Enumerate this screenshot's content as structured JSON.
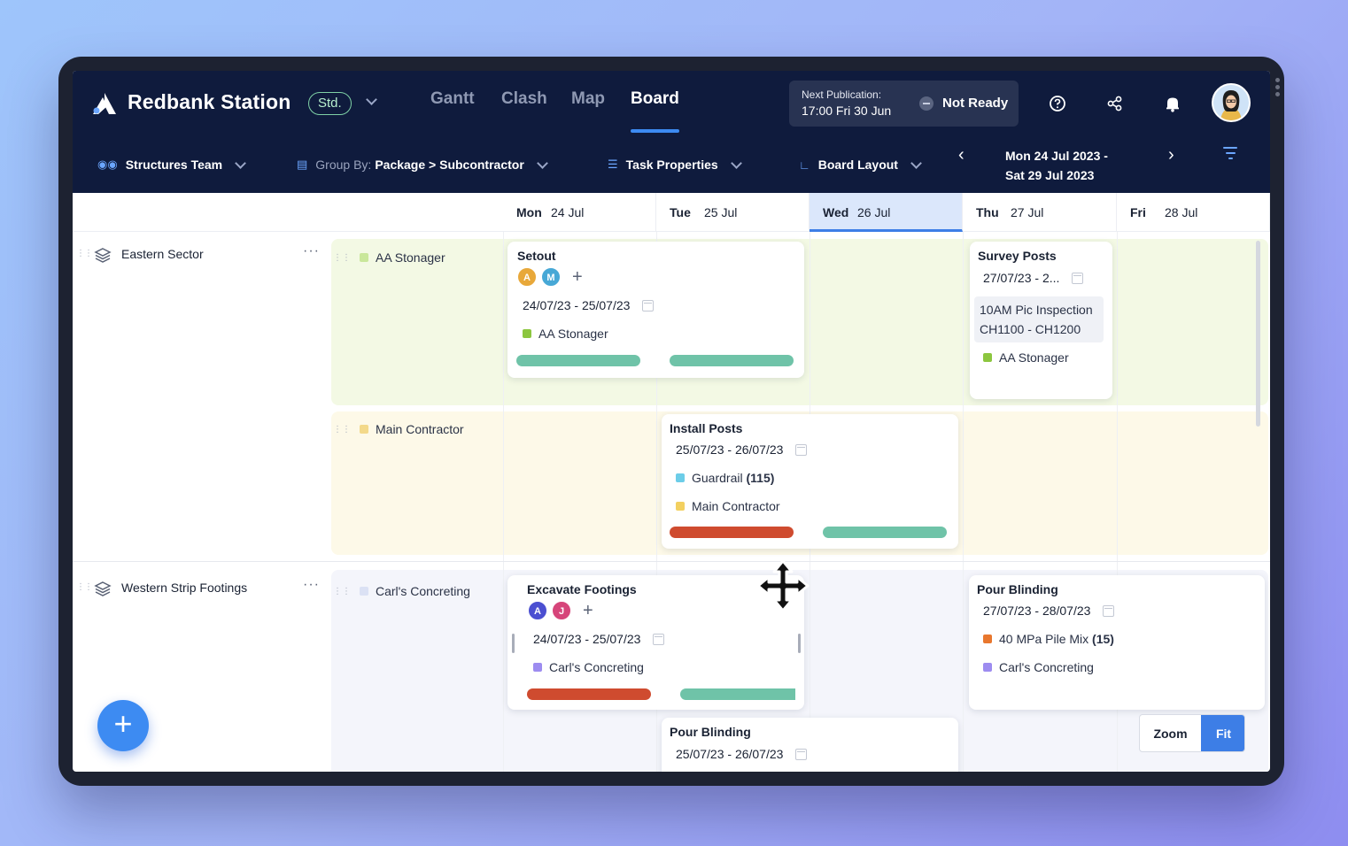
{
  "app": {
    "title": "Redbank Station",
    "badge": "Std.",
    "nav": [
      "Gantt",
      "Clash",
      "Map",
      "Board"
    ],
    "active_nav": "Board"
  },
  "publication": {
    "label": "Next Publication:",
    "time": "17:00 Fri 30 Jun",
    "status": "Not Ready"
  },
  "toolbar": {
    "team": "Structures Team",
    "group_prefix": "Group By:",
    "group_value": "Package > Subcontractor",
    "task_properties": "Task Properties",
    "board_layout": "Board Layout",
    "date_range_line1": "Mon 24 Jul 2023 -",
    "date_range_line2": "Sat 29 Jul 2023"
  },
  "days": [
    {
      "name": "Mon",
      "date": "24 Jul",
      "today": false
    },
    {
      "name": "Tue",
      "date": "25 Jul",
      "today": false
    },
    {
      "name": "Wed",
      "date": "26 Jul",
      "today": true
    },
    {
      "name": "Thu",
      "date": "27 Jul",
      "today": false
    },
    {
      "name": "Fri",
      "date": "28 Jul",
      "today": false
    }
  ],
  "sectors": [
    {
      "name": "Eastern Sector",
      "subgroups": [
        {
          "name": "AA Stonager",
          "color": "#c9e79a"
        },
        {
          "name": "Main Contractor",
          "color": "#f3d98a"
        }
      ]
    },
    {
      "name": "Western Strip Footings",
      "subgroups": [
        {
          "name": "Carl's Concreting",
          "color": "#dbe1f4"
        }
      ]
    }
  ],
  "cards": {
    "setout": {
      "title": "Setout",
      "avatars": [
        "A",
        "M"
      ],
      "dates": "24/07/23 - 25/07/23",
      "subcontractor": "AA Stonager"
    },
    "survey_posts": {
      "title": "Survey Posts",
      "dates": "27/07/23 - 2...",
      "note_line1": "10AM Pic Inspection",
      "note_line2": "CH1100 - CH1200",
      "subcontractor": "AA Stonager"
    },
    "install_posts": {
      "title": "Install Posts",
      "dates": "25/07/23 - 26/07/23",
      "material": "Guardrail",
      "material_qty": "(115)",
      "subcontractor": "Main Contractor"
    },
    "excavate_footings": {
      "title": "Excavate Footings",
      "avatars": [
        "A",
        "J"
      ],
      "dates": "24/07/23 - 25/07/23",
      "subcontractor": "Carl's Concreting"
    },
    "pour_blinding_thu": {
      "title": "Pour Blinding",
      "dates": "27/07/23 - 28/07/23",
      "material": "40 MPa Pile Mix",
      "material_qty": "(15)",
      "subcontractor": "Carl's Concreting"
    },
    "pour_blinding_tue": {
      "title": "Pour Blinding",
      "dates": "25/07/23 - 26/07/23"
    }
  },
  "controls": {
    "zoom": "Zoom",
    "fit": "Fit"
  },
  "colors": {
    "accent": "#3d8bf2",
    "progress_green": "#6fc3a8",
    "progress_red": "#cf4b2f",
    "topbar": "#0f1b3d"
  },
  "icons": [
    "logo-icon",
    "chevron-down-icon",
    "help-icon",
    "share-icon",
    "bell-icon",
    "team-icon",
    "group-icon",
    "list-icon",
    "layout-icon",
    "chevron-left-icon",
    "chevron-right-icon",
    "filter-icon",
    "layers-icon",
    "more-icon",
    "calendar-icon",
    "plus-icon",
    "move-cursor-icon"
  ]
}
